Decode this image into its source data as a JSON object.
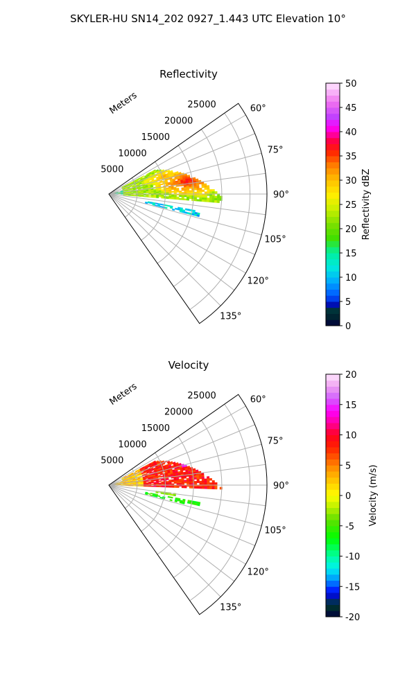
{
  "figure_title": "SKYLER-HU  SN14_202  0927_1.443 UTC Elevation 10°",
  "chart_data": [
    {
      "type": "heatmap",
      "title": "Reflectivity",
      "projection": "polar-sector",
      "theta_range_deg": [
        55,
        145
      ],
      "theta_ticks": [
        "60°",
        "75°",
        "90°",
        "105°",
        "120°",
        "135°"
      ],
      "radial_label": "Meters",
      "radial_ticks": [
        "5000",
        "10000",
        "15000",
        "20000",
        "25000"
      ],
      "r_max": 28000,
      "colorbar": {
        "label": "Reflectivity dBZ",
        "range": [
          0,
          50
        ],
        "ticks": [
          "0",
          "5",
          "10",
          "15",
          "20",
          "25",
          "30",
          "35",
          "40",
          "45",
          "50"
        ]
      },
      "echoes": [
        {
          "desc": "main storm echo",
          "theta_range": [
            62,
            94
          ],
          "r_range": [
            3000,
            20000
          ],
          "value_core": 35,
          "value_edge": 20
        },
        {
          "desc": "near-radar clutter",
          "theta_range": [
            75,
            92
          ],
          "r_range": [
            500,
            5000
          ],
          "value_core": 20,
          "value_edge": 12
        },
        {
          "desc": "low-level band",
          "theta_range": [
            100,
            104
          ],
          "r_range": [
            6500,
            16500
          ],
          "value_core": 15,
          "value_edge": 8
        }
      ]
    },
    {
      "type": "heatmap",
      "title": "Velocity",
      "projection": "polar-sector",
      "theta_range_deg": [
        55,
        145
      ],
      "theta_ticks": [
        "60°",
        "75°",
        "90°",
        "105°",
        "120°",
        "135°"
      ],
      "radial_label": "Meters",
      "radial_ticks": [
        "5000",
        "10000",
        "15000",
        "20000",
        "25000"
      ],
      "r_max": 28000,
      "colorbar": {
        "label": "Velocity (m/s)",
        "range": [
          -20,
          20
        ],
        "ticks": [
          "-20",
          "-15",
          "-10",
          "-5",
          "0",
          "5",
          "10",
          "15",
          "20"
        ]
      },
      "echoes": [
        {
          "desc": "outbound max (magenta)",
          "theta_range": [
            60,
            76
          ],
          "r_range": [
            13000,
            20000
          ],
          "value_core": 15,
          "value_edge": 12
        },
        {
          "desc": "outbound (red)",
          "theta_range": [
            62,
            92
          ],
          "r_range": [
            6000,
            20000
          ],
          "value_core": 10,
          "value_edge": 6
        },
        {
          "desc": "near-radar (yellow)",
          "theta_range": [
            70,
            92
          ],
          "r_range": [
            500,
            6000
          ],
          "value_core": 3,
          "value_edge": 0
        },
        {
          "desc": "low-level band (green/cyan)",
          "theta_range": [
            100,
            104
          ],
          "r_range": [
            6500,
            16500
          ],
          "value_core": -8,
          "value_edge": -4
        }
      ]
    }
  ]
}
